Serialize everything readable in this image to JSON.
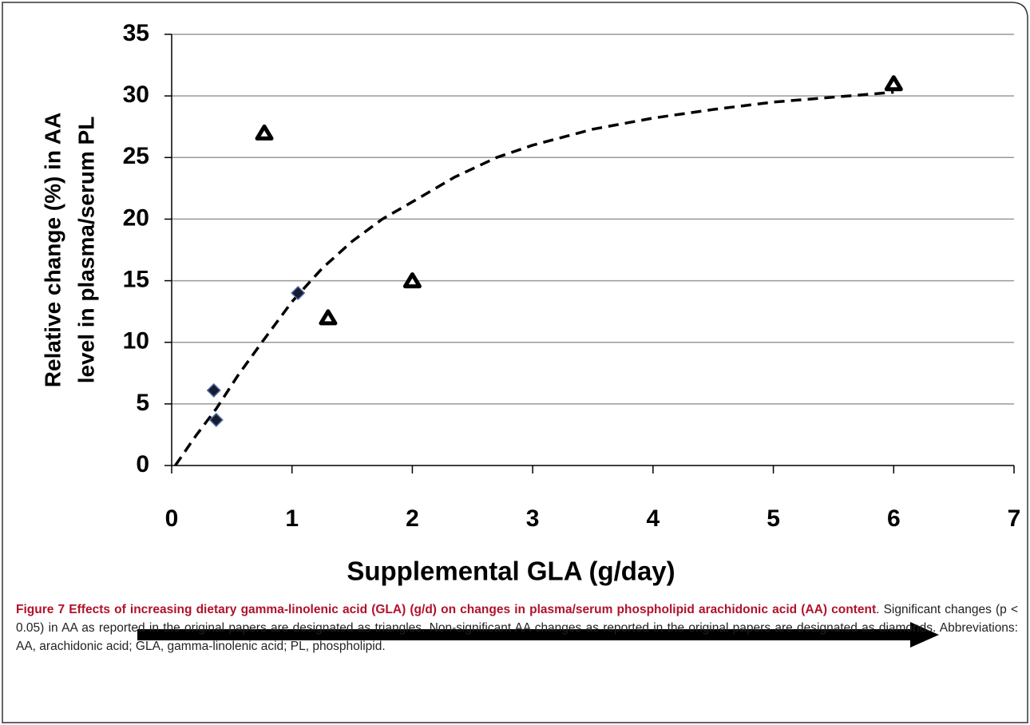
{
  "chart_data": {
    "type": "scatter",
    "ylabel": [
      "Relative change (%) in AA",
      "level in plasma/serum PL"
    ],
    "xlabel": "Supplemental GLA (g/day)",
    "xlim": [
      0,
      7
    ],
    "xticks": [
      0,
      1,
      2,
      3,
      4,
      5,
      6,
      7
    ],
    "ylim": [
      0,
      35
    ],
    "yticks": [
      0,
      5,
      10,
      15,
      20,
      25,
      30,
      35
    ],
    "grid": true,
    "series": [
      {
        "marker": "triangle",
        "color": "#000000",
        "x": [
          0.77,
          1.3,
          2.0,
          6.0
        ],
        "values": [
          27,
          12,
          15,
          31
        ]
      },
      {
        "marker": "diamond",
        "color": "#1a1a2e",
        "x": [
          0.35,
          0.37,
          1.05
        ],
        "values": [
          6.1,
          3.7,
          14
        ]
      }
    ],
    "curve": {
      "color": "#000000",
      "x": [
        0.03,
        0.2,
        0.37,
        0.55,
        0.75,
        1.0,
        1.25,
        1.5,
        1.75,
        2.0,
        2.35,
        2.7,
        3.0,
        3.5,
        4.0,
        4.5,
        5.0,
        5.5,
        6.0
      ],
      "values": [
        0,
        2.4,
        4.6,
        7.3,
        10,
        13.3,
        16,
        18.2,
        20,
        21.4,
        23.4,
        25,
        26,
        27.3,
        28.2,
        28.9,
        29.5,
        29.9,
        30.3
      ]
    }
  },
  "caption": {
    "bold": "Figure 7 Effects of increasing dietary gamma-linolenic acid (GLA) (g/d) on changes in plasma/serum phospholipid arachidonic acid (AA) content",
    "text": ". Significant changes (p < 0.05) in AA as reported in the original papers are designated as triangles. Non-significant AA changes as reported in the original papers are designated as diamonds. Abbreviations: AA, arachidonic acid; GLA, gamma-linolenic acid; PL, phospholipid."
  }
}
